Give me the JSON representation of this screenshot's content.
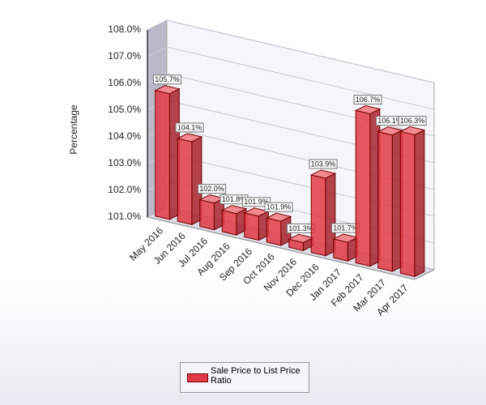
{
  "chart_data": {
    "type": "bar3d",
    "y_label": "Percentage",
    "categories": [
      "May 2016",
      "Jun 2016",
      "Jul 2016",
      "Aug 2016",
      "Sep 2016",
      "Oct 2016",
      "Nov 2016",
      "Dec 2016",
      "Jan 2017",
      "Feb 2017",
      "Mar 2017",
      "Apr 2017"
    ],
    "series": [
      {
        "name": "Sale Price to List Price Ratio",
        "color": "#e03a44",
        "values": [
          105.7,
          104.1,
          102.0,
          101.8,
          101.9,
          101.9,
          101.3,
          103.9,
          101.7,
          106.7,
          106.1,
          106.3
        ],
        "value_labels": [
          "105.7%",
          "104.1%",
          "102.0%",
          "101.8%",
          "101.9%",
          "101.9%",
          "101.3%",
          "103.9%",
          "101.7%",
          "106.7%",
          "106.1%",
          "106.3%"
        ]
      }
    ],
    "ylim": [
      101,
      108
    ],
    "yticks": [
      {
        "value": 101,
        "label": "101.0%"
      },
      {
        "value": 102,
        "label": "102.0%"
      },
      {
        "value": 103,
        "label": "103.0%"
      },
      {
        "value": 104,
        "label": "104.0%"
      },
      {
        "value": 105,
        "label": "105.0%"
      },
      {
        "value": 106,
        "label": "106.0%"
      },
      {
        "value": 107,
        "label": "107.0%"
      },
      {
        "value": 108,
        "label": "108.0%"
      }
    ],
    "grid": true
  }
}
